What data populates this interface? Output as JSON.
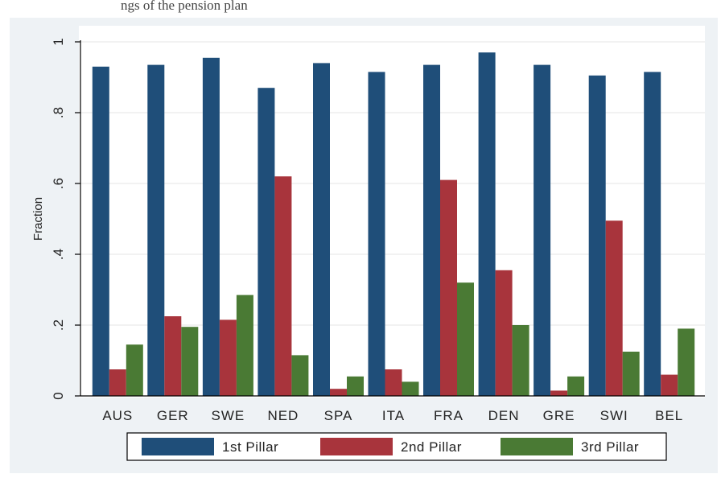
{
  "header": {
    "caption_fragment": "ngs of the pension plan"
  },
  "chart_data": {
    "type": "bar",
    "title": "",
    "xlabel": "",
    "ylabel": "Fraction",
    "ylim": [
      0,
      1
    ],
    "yticks": [
      0,
      0.2,
      0.4,
      0.6,
      0.8,
      1
    ],
    "ytick_labels": [
      "0",
      ".2",
      ".4",
      ".6",
      ".8",
      "1"
    ],
    "grid": true,
    "legend_position": "bottom",
    "categories": [
      "AUS",
      "GER",
      "SWE",
      "NED",
      "SPA",
      "ITA",
      "FRA",
      "DEN",
      "GRE",
      "SWI",
      "BEL"
    ],
    "series": [
      {
        "name": "1st Pillar",
        "color": "#1f4e79",
        "values": [
          0.93,
          0.935,
          0.955,
          0.87,
          0.94,
          0.915,
          0.935,
          0.97,
          0.935,
          0.905,
          0.915
        ]
      },
      {
        "name": "2nd Pillar",
        "color": "#a8343c",
        "values": [
          0.075,
          0.225,
          0.215,
          0.62,
          0.02,
          0.075,
          0.61,
          0.355,
          0.015,
          0.495,
          0.06
        ]
      },
      {
        "name": "3rd Pillar",
        "color": "#4a7a34",
        "values": [
          0.145,
          0.195,
          0.285,
          0.115,
          0.055,
          0.04,
          0.32,
          0.2,
          0.055,
          0.125,
          0.19
        ]
      }
    ]
  }
}
